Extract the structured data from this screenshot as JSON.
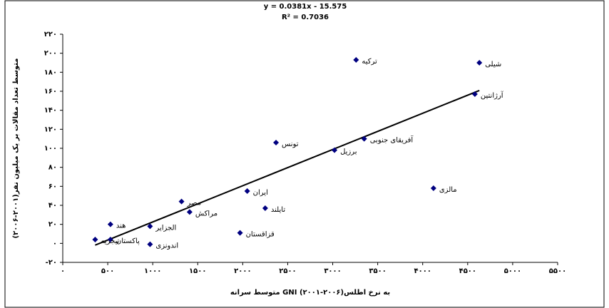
{
  "chart_data": {
    "type": "scatter",
    "equation": "y = 0.0381x - 15.575",
    "r2": "R² = 0.7036",
    "trendline": {
      "slope": 0.0381,
      "intercept": -15.575
    },
    "x_label": "متوسط سرانه GNI به نرخ اطلس(۲۰۰۶-۲۰۰۱)",
    "y_label": "متوسط تعداد مقالات بر یک میلیون نفر(۲۰۰۱-۲۰۰۶)",
    "color": "#000080",
    "points": [
      "شیلی",
      "ترکیه",
      "آرژانتین",
      "آفریقای جنوبی",
      "تونس",
      "برزیل",
      "مالزی",
      "ایران",
      "تایلند",
      "مصر",
      "مراکش",
      "الجزایر",
      "هند",
      "قزاقستان",
      "پاکستان",
      "نیجریه",
      "اندونزی"
    ],
    "x": [
      4630,
      3260,
      4580,
      3350,
      2370,
      3020,
      4120,
      2050,
      2250,
      1320,
      1410,
      970,
      530,
      1970,
      530,
      360,
      970
    ],
    "values": [
      190,
      193,
      157,
      110,
      106,
      98,
      58,
      55,
      37,
      44,
      33,
      18,
      20,
      11,
      4,
      4,
      -1
    ],
    "xlim": [
      0,
      5500
    ],
    "xticks": [
      {
        "value": 0,
        "label": "۰"
      },
      {
        "value": 500,
        "label": "۵۰۰"
      },
      {
        "value": 1000,
        "label": "۱۰۰۰"
      },
      {
        "value": 1500,
        "label": "۱۵۰۰"
      },
      {
        "value": 2000,
        "label": "۲۰۰۰"
      },
      {
        "value": 2500,
        "label": "۲۵۰۰"
      },
      {
        "value": 3000,
        "label": "۳۰۰۰"
      },
      {
        "value": 3500,
        "label": "۳۵۰۰"
      },
      {
        "value": 4000,
        "label": "۴۰۰۰"
      },
      {
        "value": 4500,
        "label": "۴۵۰۰"
      },
      {
        "value": 5000,
        "label": "۵۰۰۰"
      },
      {
        "value": 5500,
        "label": "۵۵۰۰"
      }
    ],
    "ylim": [
      -20,
      220
    ],
    "yticks": [
      {
        "value": -20,
        "label": "-۲۰"
      },
      {
        "value": 0,
        "label": "۰"
      },
      {
        "value": 20,
        "label": "۲۰"
      },
      {
        "value": 40,
        "label": "۴۰"
      },
      {
        "value": 60,
        "label": "۶۰"
      },
      {
        "value": 80,
        "label": "۸۰"
      },
      {
        "value": 100,
        "label": "۱۰۰"
      },
      {
        "value": 120,
        "label": "۱۲۰"
      },
      {
        "value": 140,
        "label": "۱۴۰"
      },
      {
        "value": 160,
        "label": "۱۶۰"
      },
      {
        "value": 180,
        "label": "۱۸۰"
      },
      {
        "value": 200,
        "label": "۲۰۰"
      },
      {
        "value": 220,
        "label": "۲۲۰"
      }
    ]
  }
}
